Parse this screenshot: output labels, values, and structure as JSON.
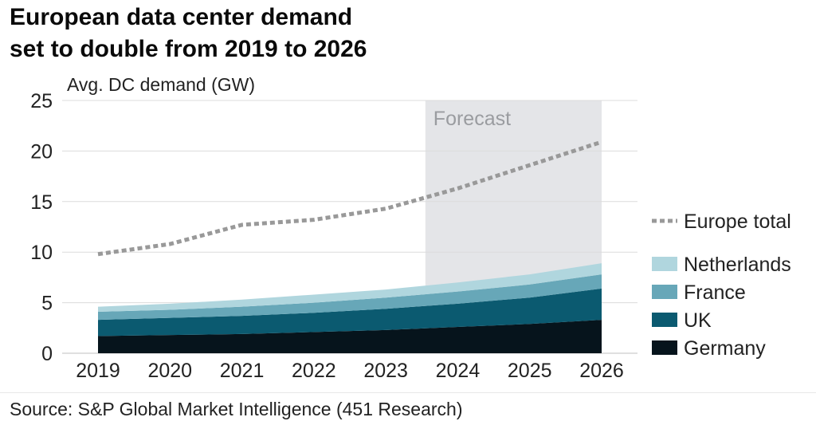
{
  "title": {
    "line1": "European data center demand",
    "line2": "set to double from 2019 to 2026"
  },
  "source": "Source: S&P Global Market Intelligence (451 Research)",
  "chart_data": {
    "type": "area",
    "stacked": true,
    "title": "European data center demand set to double from 2019 to 2026",
    "ylabel": "Avg. DC demand (GW)",
    "xlabel": "",
    "ylim": [
      0,
      25
    ],
    "yticks": [
      0,
      5,
      10,
      15,
      20,
      25
    ],
    "grid": true,
    "categories": [
      "2019",
      "2020",
      "2021",
      "2022",
      "2023",
      "2024",
      "2025",
      "2026"
    ],
    "forecast": {
      "label": "Forecast",
      "from": 4.55,
      "to": 7
    },
    "series": [
      {
        "name": "Germany",
        "color": "#06141c",
        "values": [
          1.7,
          1.8,
          1.9,
          2.1,
          2.3,
          2.6,
          2.9,
          3.3
        ]
      },
      {
        "name": "UK",
        "color": "#0b5a70",
        "values": [
          1.6,
          1.7,
          1.8,
          1.9,
          2.1,
          2.3,
          2.6,
          3.1
        ]
      },
      {
        "name": "France",
        "color": "#67a7b8",
        "values": [
          0.8,
          0.8,
          0.9,
          1.0,
          1.1,
          1.2,
          1.3,
          1.4
        ]
      },
      {
        "name": "Netherlands",
        "color": "#b0d6de",
        "values": [
          0.5,
          0.6,
          0.7,
          0.8,
          0.8,
          0.9,
          1.0,
          1.1
        ]
      }
    ],
    "total": {
      "name": "Europe total",
      "color": "#999999",
      "values": [
        9.8,
        10.8,
        12.7,
        13.2,
        14.3,
        16.3,
        18.6,
        20.9
      ]
    },
    "legend": [
      "Europe total",
      "Netherlands",
      "France",
      "UK",
      "Germany"
    ]
  }
}
